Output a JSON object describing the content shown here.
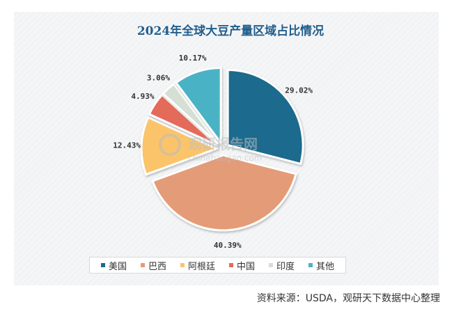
{
  "chart_data": {
    "type": "pie",
    "title": "2024年全球大豆产量区域占比情况",
    "legend_position": "bottom",
    "slices": [
      {
        "label": "美国",
        "value": 29.02,
        "value_label": "29.02%",
        "color": "#1d6a8d",
        "exploded": true
      },
      {
        "label": "巴西",
        "value": 40.39,
        "value_label": "40.39%",
        "color": "#e49b78",
        "exploded": true
      },
      {
        "label": "阿根廷",
        "value": 12.43,
        "value_label": "12.43%",
        "color": "#fbc46a",
        "exploded": true
      },
      {
        "label": "中国",
        "value": 4.93,
        "value_label": "4.93%",
        "color": "#e46a5a",
        "exploded": true
      },
      {
        "label": "印度",
        "value": 3.06,
        "value_label": "3.06%",
        "color": "#d5dfd4",
        "exploded": true
      },
      {
        "label": "其他",
        "value": 10.17,
        "value_label": "10.17%",
        "color": "#4ab3c5",
        "exploded": true
      }
    ]
  },
  "watermark": {
    "brand": "观研报告网",
    "domain": "chinabaogao.com"
  },
  "source": "资料来源：USDA，观研天下数据中心整理"
}
